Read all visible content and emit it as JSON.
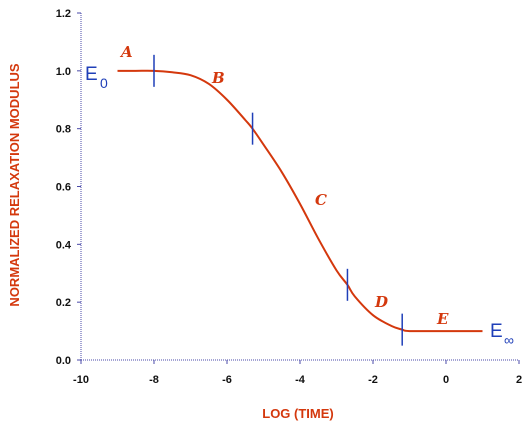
{
  "chart_data": {
    "type": "line",
    "xlabel": "LOG  (TIME)",
    "ylabel": "NORMALIZED  RELAXATION  MODULUS",
    "xlim": [
      -10,
      2
    ],
    "ylim": [
      0,
      1.2
    ],
    "x_ticks": [
      "-10",
      "-8",
      "-6",
      "-4",
      "-2",
      "0",
      "2"
    ],
    "y_ticks": [
      "0.0",
      "0.2",
      "0.4",
      "0.6",
      "0.8",
      "1.0",
      "1.2"
    ],
    "grid": false,
    "colors": {
      "curve": "#d4380d",
      "markers": "#1f3fb8",
      "axis": "#4a4aa8"
    },
    "series": [
      {
        "points": [
          [
            -9.0,
            1.0
          ],
          [
            -8.5,
            1.0
          ],
          [
            -8.0,
            1.0
          ],
          [
            -7.5,
            0.995
          ],
          [
            -7.0,
            0.985
          ],
          [
            -6.5,
            0.955
          ],
          [
            -6.0,
            0.9
          ],
          [
            -5.5,
            0.83
          ],
          [
            -5.3,
            0.8
          ],
          [
            -5.0,
            0.745
          ],
          [
            -4.5,
            0.65
          ],
          [
            -4.0,
            0.54
          ],
          [
            -3.5,
            0.42
          ],
          [
            -3.0,
            0.31
          ],
          [
            -2.7,
            0.26
          ],
          [
            -2.5,
            0.22
          ],
          [
            -2.0,
            0.155
          ],
          [
            -1.5,
            0.118
          ],
          [
            -1.2,
            0.105
          ],
          [
            -1.0,
            0.1
          ],
          [
            0.0,
            0.1
          ],
          [
            1.0,
            0.1
          ]
        ]
      }
    ],
    "markers_x": [
      -8.0,
      -5.3,
      -2.7,
      -1.2
    ],
    "annotations": {
      "region_A": "A",
      "region_B": "B",
      "region_C": "C",
      "region_D": "D",
      "region_E": "E",
      "e_zero_main": "E",
      "e_zero_sub": "0",
      "e_inf_main": "E",
      "e_inf_sub": "∞"
    }
  }
}
